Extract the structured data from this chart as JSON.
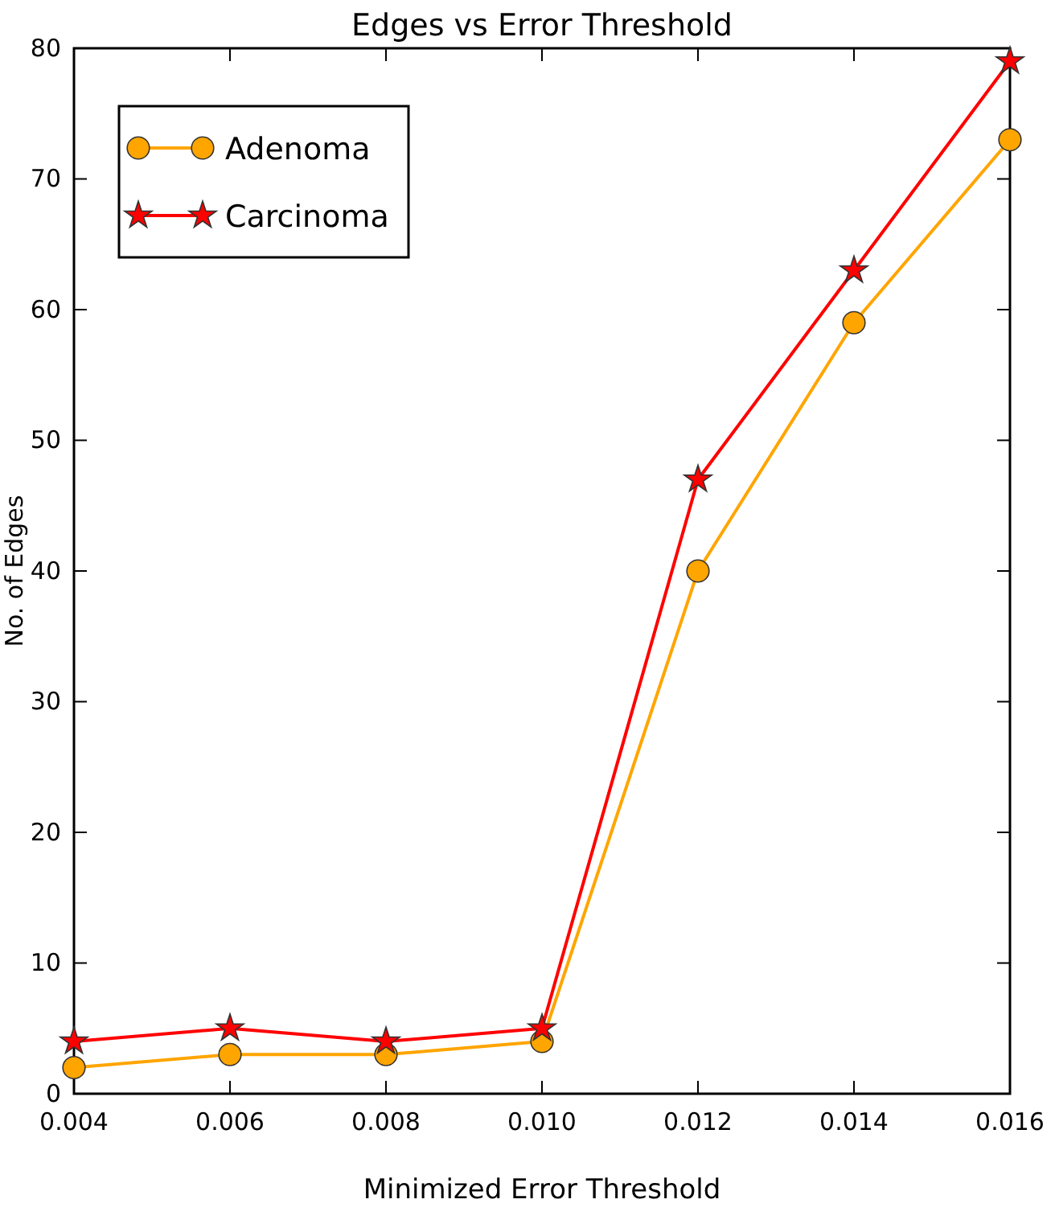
{
  "chart_data": {
    "type": "line",
    "title": "Edges vs Error Threshold",
    "xlabel": "Minimized Error Threshold",
    "ylabel": "No. of Edges",
    "x": [
      0.004,
      0.006,
      0.008,
      0.01,
      0.012,
      0.014,
      0.016
    ],
    "series": [
      {
        "name": "Adenoma",
        "color": "#ffa500",
        "marker": "circle",
        "values": [
          2,
          3,
          3,
          4,
          40,
          59,
          73
        ]
      },
      {
        "name": "Carcinoma",
        "color": "#ff0000",
        "marker": "star",
        "values": [
          4,
          5,
          4,
          5,
          47,
          63,
          79
        ]
      }
    ],
    "xlim": [
      0.004,
      0.016
    ],
    "xticks": [
      {
        "value": 0.004,
        "label": "0.004"
      },
      {
        "value": 0.006,
        "label": "0.006"
      },
      {
        "value": 0.008,
        "label": "0.008"
      },
      {
        "value": 0.01,
        "label": "0.010"
      },
      {
        "value": 0.012,
        "label": "0.012"
      },
      {
        "value": 0.014,
        "label": "0.014"
      },
      {
        "value": 0.016,
        "label": "0.016"
      }
    ],
    "ylim": [
      0,
      80
    ],
    "yticks": [
      0,
      10,
      20,
      30,
      40,
      50,
      60,
      70,
      80
    ],
    "grid": false,
    "legend": "top left",
    "line_style": "solid"
  }
}
